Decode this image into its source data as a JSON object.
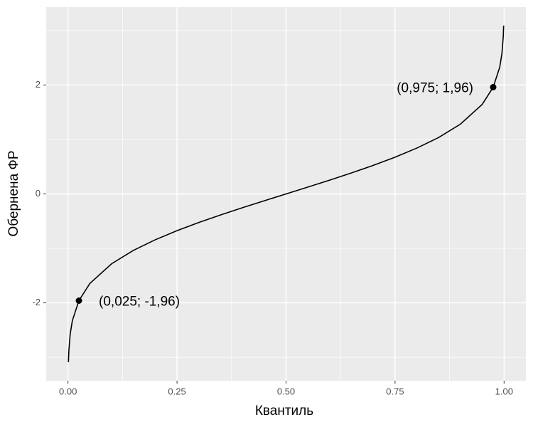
{
  "chart_data": {
    "type": "line",
    "x_label": "Квантиль",
    "y_label": "Обернена ФР",
    "x": [
      0.001,
      0.002,
      0.005,
      0.01,
      0.025,
      0.05,
      0.1,
      0.15,
      0.2,
      0.25,
      0.3,
      0.35,
      0.4,
      0.45,
      0.5,
      0.55,
      0.6,
      0.65,
      0.7,
      0.75,
      0.8,
      0.85,
      0.9,
      0.95,
      0.975,
      0.99,
      0.995,
      0.998,
      0.999
    ],
    "series": [
      {
        "color": "#000000",
        "values": [
          -3.09,
          -2.878,
          -2.576,
          -2.326,
          -1.96,
          -1.645,
          -1.282,
          -1.036,
          -0.842,
          -0.674,
          -0.524,
          -0.385,
          -0.253,
          -0.126,
          0,
          0.126,
          0.253,
          0.385,
          0.524,
          0.674,
          0.842,
          1.036,
          1.282,
          1.645,
          1.96,
          2.326,
          2.576,
          2.878,
          3.09
        ]
      }
    ],
    "points": {
      "x": [
        0.025,
        0.975
      ],
      "y": [
        -1.96,
        1.96
      ],
      "color": "#000000"
    },
    "annotations": [
      "(0,025; -1,96)",
      "(0,975; 1,96)"
    ],
    "xlim": [
      -0.05,
      1.05
    ],
    "ylim": [
      -3.43,
      3.43
    ],
    "xticks": [
      {
        "value": 0,
        "label": "0.00"
      },
      {
        "value": 0.25,
        "label": "0.25"
      },
      {
        "value": 0.5,
        "label": "0.50"
      },
      {
        "value": 0.75,
        "label": "0.75"
      },
      {
        "value": 1,
        "label": "1.00"
      }
    ],
    "yticks": [
      -2,
      0,
      2
    ],
    "x_minor_grid": [
      0.125,
      0.375,
      0.625,
      0.875
    ],
    "y_minor_grid": [
      -3,
      -1,
      1,
      3
    ],
    "grid": true
  }
}
